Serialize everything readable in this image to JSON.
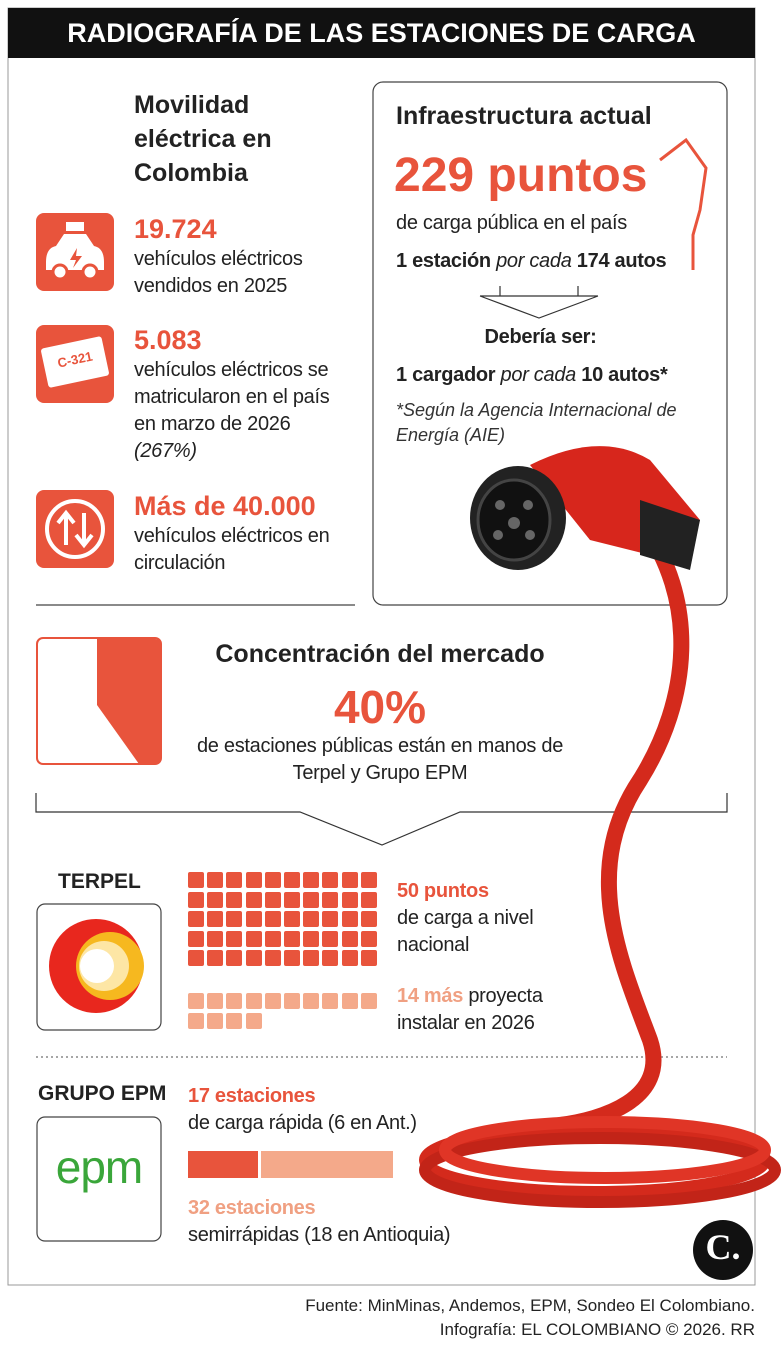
{
  "title": "RADIOGRAFÍA DE LAS ESTACIONES DE CARGA",
  "movilidad": {
    "heading": "Movilidad eléctrica en Colombia",
    "items": [
      {
        "value": "19.724",
        "text": "vehículos eléctricos vendidos en 2025"
      },
      {
        "value": "5.083",
        "text": "vehículos eléctricos se matricularon en el país en marzo de 2026",
        "note": "(267%)",
        "plate": "C-321"
      },
      {
        "value": "Más de 40.000",
        "text": "vehículos eléctricos en circulación"
      }
    ]
  },
  "infraestructura": {
    "heading": "Infraestructura actual",
    "value": "229 puntos",
    "text": "de carga pública en el país",
    "actual": {
      "a": "1 estación",
      "b": "por cada",
      "c": "174 autos"
    },
    "should": "Debería ser:",
    "ideal": {
      "a": "1 cargador",
      "b": "por cada",
      "c": "10 autos*"
    },
    "note": "*Según la Agencia Internacional de Energía (AIE)"
  },
  "mercado": {
    "heading": "Concentración del mercado",
    "value": "40%",
    "text": "de estaciones públicas están en manos de Terpel y Grupo EPM"
  },
  "terpel": {
    "label": "TERPEL",
    "current": {
      "count": 50,
      "unit": "puntos",
      "text": "de carga a nivel nacional"
    },
    "planned": {
      "count": 14,
      "unit": "más",
      "text": "proyecta instalar en 2026"
    }
  },
  "epm": {
    "label": "GRUPO EPM",
    "logo": "epm",
    "fast": {
      "count": 17,
      "unit": "estaciones",
      "text": "de carga rápida (6 en Ant.)"
    },
    "semi": {
      "count": 32,
      "unit": "estaciones",
      "text": "semirrápidas (18 en Antioquia)"
    }
  },
  "brand": "C.",
  "sources": [
    "Fuente: MinMinas, Andemos, EPM, Sondeo El Colombiano.",
    "Infografía: EL COLOMBIANO © 2026. RR"
  ]
}
